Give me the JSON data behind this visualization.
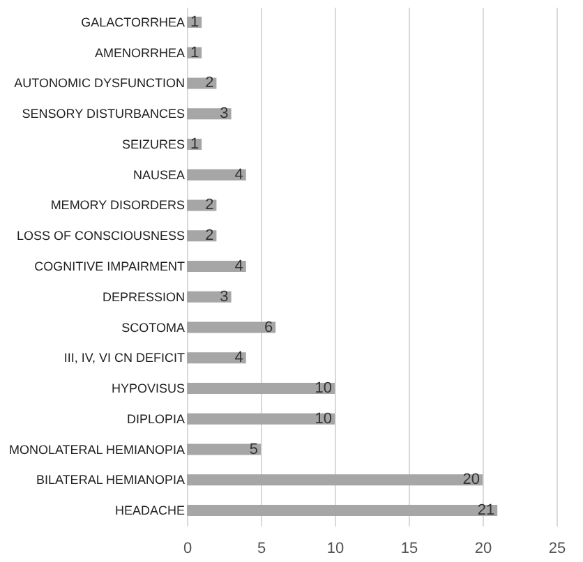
{
  "chart_data": {
    "type": "bar",
    "orientation": "horizontal",
    "categories": [
      "GALACTORRHEA",
      "AMENORRHEA",
      "AUTONOMIC DYSFUNCTION",
      "SENSORY DISTURBANCES",
      "SEIZURES",
      "NAUSEA",
      "MEMORY DISORDERS",
      "LOSS OF CONSCIOUSNESS",
      "COGNITIVE IMPAIRMENT",
      "DEPRESSION",
      "SCOTOMA",
      "III, IV, VI CN DEFICIT",
      "HYPOVISUS",
      "DIPLOPIA",
      "MONOLATERAL HEMIANOPIA",
      "BILATERAL HEMIANOPIA",
      "HEADACHE"
    ],
    "values": [
      1,
      1,
      2,
      3,
      1,
      4,
      2,
      2,
      4,
      3,
      6,
      4,
      10,
      10,
      5,
      20,
      21
    ],
    "color": "#a6a6a6",
    "xlim": [
      0,
      25
    ],
    "xticks": [
      0,
      5,
      10,
      15,
      20,
      25
    ],
    "grid": "x",
    "data_labels": true
  }
}
